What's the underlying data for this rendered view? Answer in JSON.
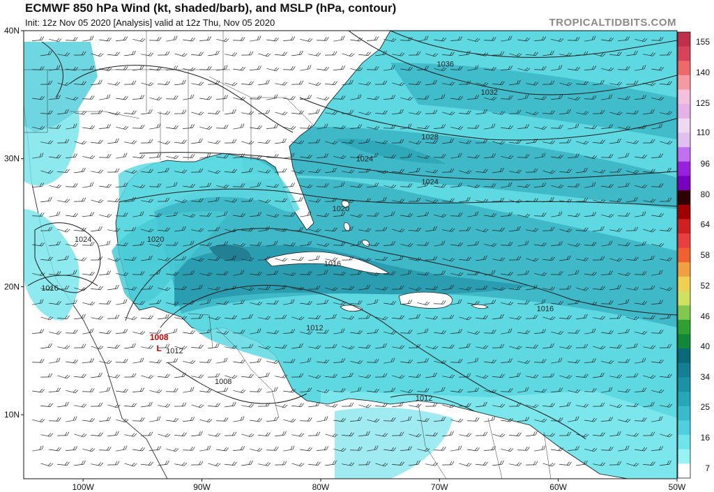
{
  "header": {
    "title": "ECMWF 850 hPa Wind (kt, shaded/barb), and MSLP (hPa, contour)",
    "subtitle": "Init: 12z Nov 05 2020   [Analysis]   valid at 12z Thu, Nov 05 2020",
    "brand": "TROPICALTIDBITS.COM"
  },
  "map": {
    "lat_range": [
      5,
      40
    ],
    "lon_range": [
      -105,
      -50
    ],
    "lat_ticks": [
      {
        "value": 40,
        "label": "40N"
      },
      {
        "value": 30,
        "label": "30N"
      },
      {
        "value": 20,
        "label": "20N"
      },
      {
        "value": 10,
        "label": "10N"
      }
    ],
    "lon_ticks": [
      {
        "value": -100,
        "label": "100W"
      },
      {
        "value": -90,
        "label": "90W"
      },
      {
        "value": -80,
        "label": "80W"
      },
      {
        "value": -70,
        "label": "70W"
      },
      {
        "value": -60,
        "label": "60W"
      },
      {
        "value": -50,
        "label": "50W"
      }
    ],
    "isobars": [
      {
        "label": "1036",
        "lon": -69.5,
        "lat": 37.2
      },
      {
        "label": "1032",
        "lon": -65.8,
        "lat": 35.0
      },
      {
        "label": "1028",
        "lon": -70.8,
        "lat": 31.5
      },
      {
        "label": "1024",
        "lon": -76.3,
        "lat": 29.8
      },
      {
        "label": "1024",
        "lon": -70.8,
        "lat": 28.0
      },
      {
        "label": "1024",
        "lon": -100.0,
        "lat": 23.5
      },
      {
        "label": "1020",
        "lon": -78.3,
        "lat": 25.9
      },
      {
        "label": "1020",
        "lon": -93.9,
        "lat": 23.5
      },
      {
        "label": "1016",
        "lon": -79.0,
        "lat": 21.6
      },
      {
        "label": "1016",
        "lon": -102.8,
        "lat": 19.7
      },
      {
        "label": "1016",
        "lon": -61.1,
        "lat": 18.1
      },
      {
        "label": "1012",
        "lon": -80.5,
        "lat": 16.6
      },
      {
        "label": "1012",
        "lon": -92.3,
        "lat": 14.8
      },
      {
        "label": "1012",
        "lon": -71.3,
        "lat": 11.1
      },
      {
        "label": "1008",
        "lon": -88.2,
        "lat": 12.4
      }
    ],
    "low_center": {
      "label": "1008",
      "symbol": "L",
      "lon": -93.6,
      "lat": 15.3
    }
  },
  "colorbar": {
    "labels": [
      "155",
      "140",
      "125",
      "110",
      "96",
      "80",
      "64",
      "58",
      "52",
      "46",
      "40",
      "34",
      "25",
      "16",
      "7"
    ],
    "colors": [
      "#c0304a",
      "#d8435a",
      "#ee6a6a",
      "#f59aa0",
      "#f5c0de",
      "#e6b0e8",
      "#f0d8f0",
      "#e0c0f0",
      "#c070f0",
      "#9a20e0",
      "#7a00c0",
      "#300000",
      "#a00000",
      "#d02020",
      "#e84040",
      "#f06030",
      "#f0a040",
      "#f0d050",
      "#d0e060",
      "#80c850",
      "#30a030",
      "#108838",
      "#0a6a7a",
      "#127f92",
      "#1a93a6",
      "#25a8b8",
      "#38bccb",
      "#4ed0de",
      "#6ee4ec",
      "#98f4f4",
      "#ffffff"
    ]
  }
}
